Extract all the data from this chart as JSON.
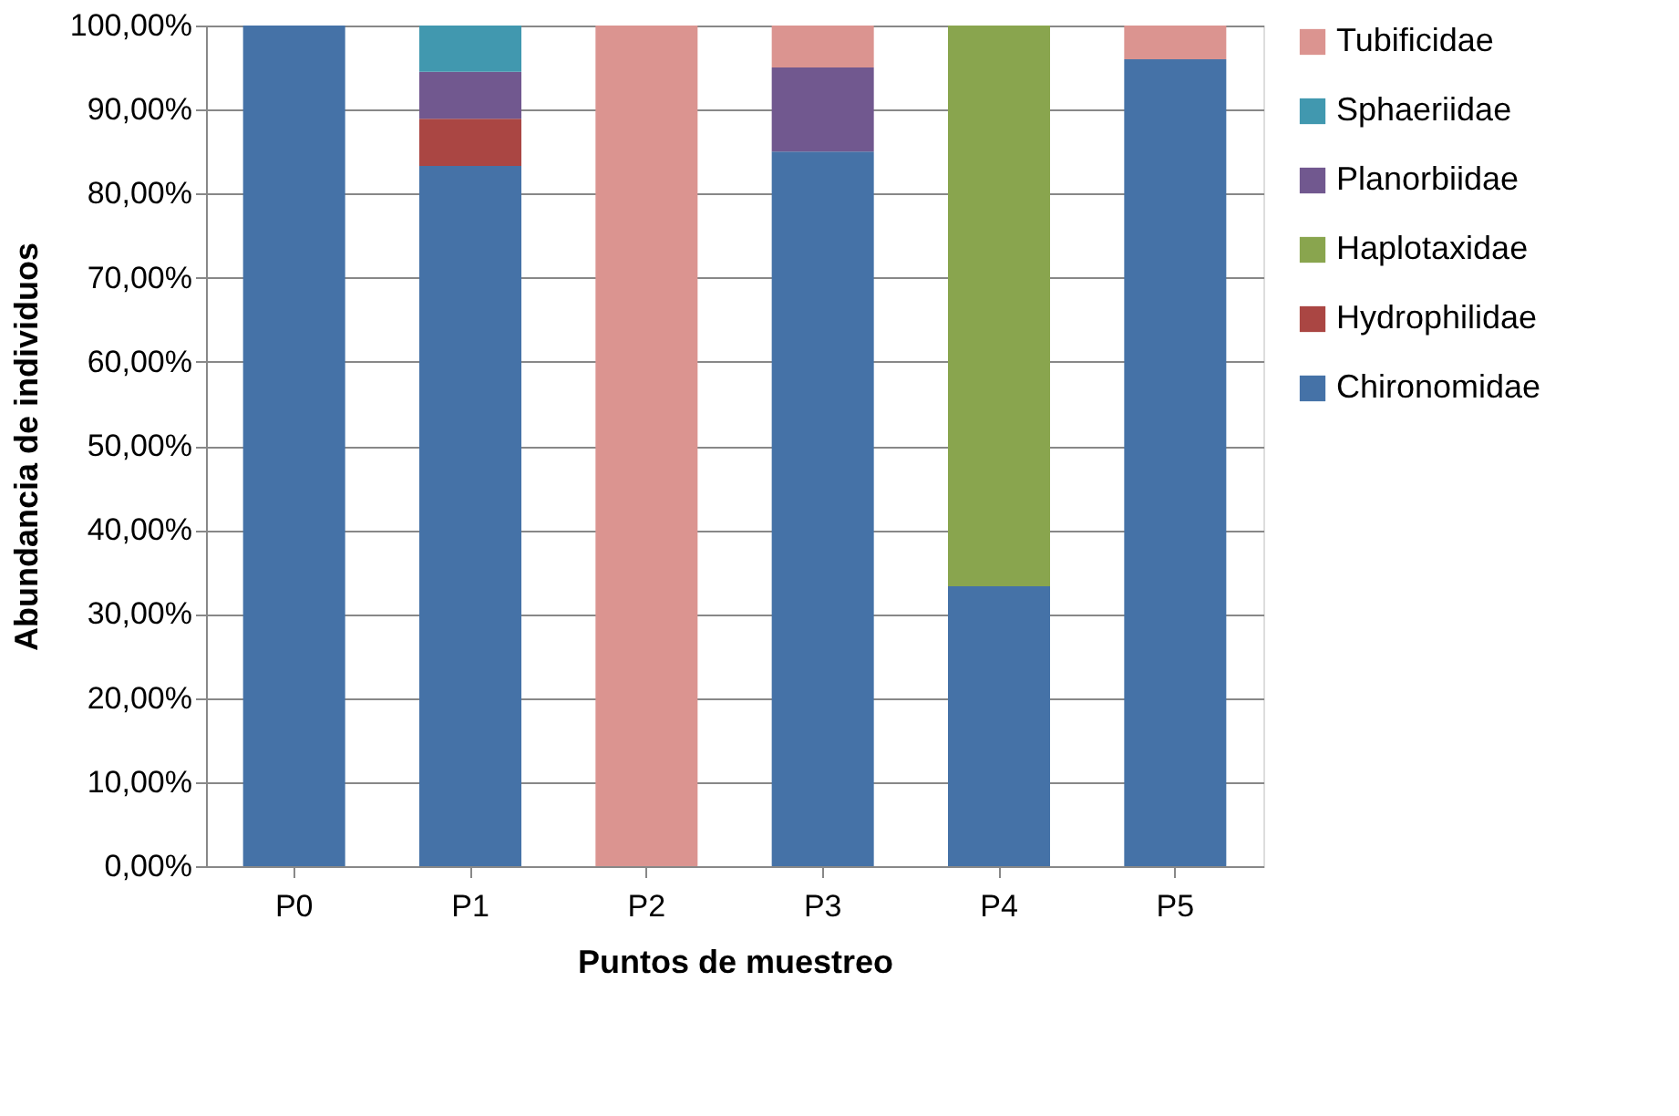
{
  "chart_data": {
    "type": "bar",
    "stacked": true,
    "xlabel": "Puntos de muestreo",
    "ylabel": "Abundancia de individuos",
    "categories": [
      "P0",
      "P1",
      "P2",
      "P3",
      "P4",
      "P5"
    ],
    "series": [
      {
        "name": "Chironomidae",
        "color": "#4572a7",
        "values": [
          100,
          83.3,
          null,
          85,
          33.3,
          96
        ]
      },
      {
        "name": "Hydrophilidae",
        "color": "#aa4643",
        "values": [
          null,
          5.6,
          null,
          null,
          null,
          null
        ]
      },
      {
        "name": "Haplotaxidae",
        "color": "#89a54e",
        "values": [
          null,
          null,
          null,
          null,
          66.7,
          null
        ]
      },
      {
        "name": "Planorbiidae",
        "color": "#71588f",
        "values": [
          null,
          5.6,
          null,
          10,
          null,
          null
        ]
      },
      {
        "name": "Sphaeriidae",
        "color": "#4198af",
        "values": [
          null,
          5.5,
          null,
          null,
          null,
          null
        ]
      },
      {
        "name": "Tubificidae",
        "color": "#db9490",
        "values": [
          null,
          null,
          100,
          5,
          null,
          4
        ]
      }
    ],
    "ylim": [
      0,
      100
    ],
    "yticks": [
      {
        "value": 0,
        "label": "0,00%"
      },
      {
        "value": 10,
        "label": "10,00%"
      },
      {
        "value": 20,
        "label": "20,00%"
      },
      {
        "value": 30,
        "label": "30,00%"
      },
      {
        "value": 40,
        "label": "40,00%"
      },
      {
        "value": 50,
        "label": "50,00%"
      },
      {
        "value": 60,
        "label": "60,00%"
      },
      {
        "value": 70,
        "label": "70,00%"
      },
      {
        "value": 80,
        "label": "80,00%"
      },
      {
        "value": 90,
        "label": "90,00%"
      },
      {
        "value": 100,
        "label": "100,00%"
      }
    ],
    "grid": "y",
    "legend": "right"
  }
}
